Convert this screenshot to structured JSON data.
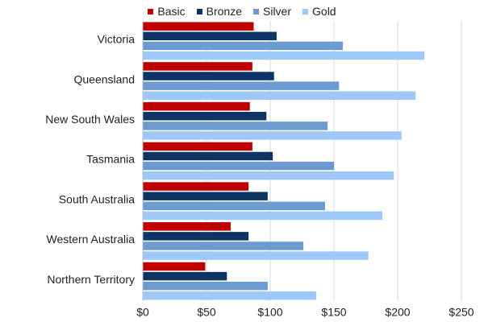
{
  "chart_data": {
    "type": "bar",
    "orientation": "horizontal",
    "title": "",
    "xlabel": "",
    "ylabel": "",
    "categories": [
      "Victoria",
      "Queensland",
      "New South Wales",
      "Tasmania",
      "South Australia",
      "Western Australia",
      "Northern Territory"
    ],
    "series": [
      {
        "name": "Basic",
        "color": "#c00000",
        "values": [
          87,
          86,
          84,
          86,
          83,
          69,
          49
        ]
      },
      {
        "name": "Bronze",
        "color": "#0d3464",
        "values": [
          105,
          103,
          97,
          102,
          98,
          83,
          66
        ]
      },
      {
        "name": "Silver",
        "color": "#6b9bd1",
        "values": [
          157,
          154,
          145,
          150,
          143,
          126,
          98
        ]
      },
      {
        "name": "Gold",
        "color": "#9dc8f7",
        "values": [
          221,
          214,
          203,
          197,
          188,
          177,
          136
        ]
      }
    ],
    "xlim": [
      0,
      250
    ],
    "ticks": [
      0,
      50,
      100,
      150,
      200,
      250
    ],
    "tick_labels": [
      "$0",
      "$50",
      "$100",
      "$150",
      "$200",
      "$250"
    ],
    "grid": true,
    "legend_position": "top-center"
  }
}
